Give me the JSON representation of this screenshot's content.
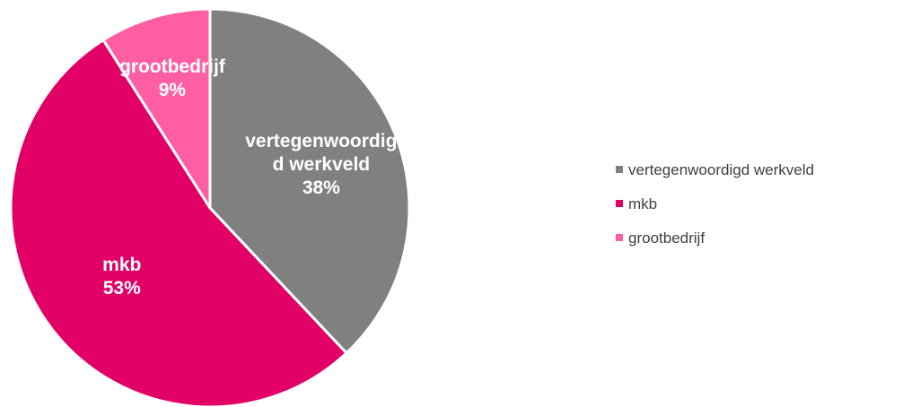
{
  "chart_data": {
    "type": "pie",
    "title": "",
    "legend_position": "right",
    "start_angle_deg": 0,
    "direction": "clockwise",
    "slices": [
      {
        "name": "vertegenwoordigd werkveld",
        "value": 38,
        "percent_label": "38%",
        "label_lines": [
          "vertegenwoordig",
          "d werkveld",
          "38%"
        ],
        "color": "#808080"
      },
      {
        "name": "mkb",
        "value": 53,
        "percent_label": "53%",
        "label_lines": [
          "mkb",
          "53%"
        ],
        "color": "#e20066"
      },
      {
        "name": "grootbedrijf",
        "value": 9,
        "percent_label": "9%",
        "label_lines": [
          "grootbedrijf",
          "9%"
        ],
        "color": "#ff5fa2"
      }
    ]
  }
}
